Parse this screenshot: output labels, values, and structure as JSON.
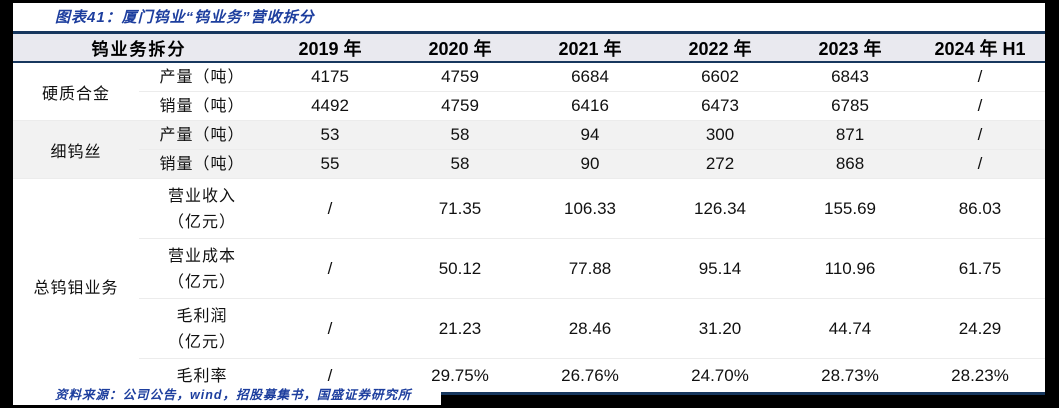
{
  "figure": {
    "title": "图表41：厦门钨业“钨业务”营收拆分",
    "source": "资料来源：公司公告，wind，招股募集书，国盛证券研究所"
  },
  "colors": {
    "border_navy": "#17375E",
    "title_blue": "#1D3E9E",
    "header_bg": "#E9E9EF",
    "stripe_bg": "#F2F2F2",
    "page_edge": "#000000"
  },
  "table": {
    "corner_header": "钨业务拆分",
    "year_headers": [
      "2019 年",
      "2020 年",
      "2021 年",
      "2022 年",
      "2023 年",
      "2024 年 H1"
    ],
    "groups": [
      {
        "name": "硬质合金",
        "shaded": false,
        "rows": [
          {
            "label": "产量（吨）",
            "label2": "",
            "values": [
              "4175",
              "4759",
              "6684",
              "6602",
              "6843",
              "/"
            ]
          },
          {
            "label": "销量（吨）",
            "label2": "",
            "values": [
              "4492",
              "4759",
              "6416",
              "6473",
              "6785",
              "/"
            ]
          }
        ]
      },
      {
        "name": "细钨丝",
        "shaded": true,
        "rows": [
          {
            "label": "产量（吨）",
            "label2": "",
            "values": [
              "53",
              "58",
              "94",
              "300",
              "871",
              "/"
            ]
          },
          {
            "label": "销量（吨）",
            "label2": "",
            "values": [
              "55",
              "58",
              "90",
              "272",
              "868",
              "/"
            ]
          }
        ]
      },
      {
        "name": "总钨钼业务",
        "shaded": false,
        "rows": [
          {
            "label": "营业收入",
            "label2": "（亿元）",
            "values": [
              "/",
              "71.35",
              "106.33",
              "126.34",
              "155.69",
              "86.03"
            ]
          },
          {
            "label": "营业成本",
            "label2": "（亿元）",
            "values": [
              "/",
              "50.12",
              "77.88",
              "95.14",
              "110.96",
              "61.75"
            ]
          },
          {
            "label": "毛利润",
            "label2": "（亿元）",
            "values": [
              "/",
              "21.23",
              "28.46",
              "31.20",
              "44.74",
              "24.29"
            ]
          },
          {
            "label": "毛利率",
            "label2": "",
            "values": [
              "/",
              "29.75%",
              "26.76%",
              "24.70%",
              "28.73%",
              "28.23%"
            ]
          }
        ]
      }
    ]
  }
}
